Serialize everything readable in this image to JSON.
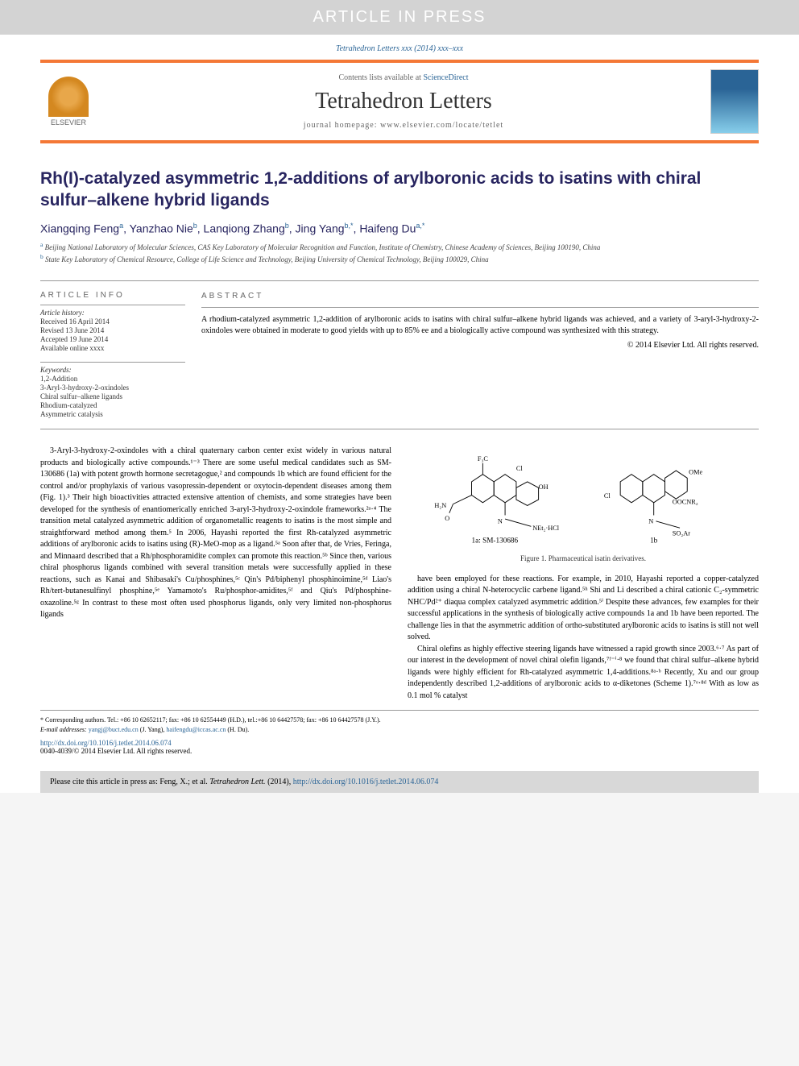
{
  "banner": "ARTICLE IN PRESS",
  "journal_ref": "Tetrahedron Letters xxx (2014) xxx–xxx",
  "header": {
    "contents_prefix": "Contents lists available at ",
    "contents_link": "ScienceDirect",
    "journal": "Tetrahedron Letters",
    "homepage_prefix": "journal homepage: ",
    "homepage": "www.elsevier.com/locate/tetlet",
    "publisher": "ELSEVIER"
  },
  "title": "Rh(I)-catalyzed asymmetric 1,2-additions of arylboronic acids to isatins with chiral sulfur–alkene hybrid ligands",
  "authors": [
    {
      "name": "Xiangqing Feng",
      "sup": "a"
    },
    {
      "name": "Yanzhao Nie",
      "sup": "b"
    },
    {
      "name": "Lanqiong Zhang",
      "sup": "b"
    },
    {
      "name": "Jing Yang",
      "sup": "b,*"
    },
    {
      "name": "Haifeng Du",
      "sup": "a,*"
    }
  ],
  "affiliations": [
    {
      "sup": "a",
      "text": "Beijing National Laboratory of Molecular Sciences, CAS Key Laboratory of Molecular Recognition and Function, Institute of Chemistry, Chinese Academy of Sciences, Beijing 100190, China"
    },
    {
      "sup": "b",
      "text": "State Key Laboratory of Chemical Resource, College of Life Science and Technology, Beijing University of Chemical Technology, Beijing 100029, China"
    }
  ],
  "article_info": {
    "heading": "ARTICLE INFO",
    "history_label": "Article history:",
    "history": [
      "Received 16 April 2014",
      "Revised 13 June 2014",
      "Accepted 19 June 2014",
      "Available online xxxx"
    ],
    "keywords_label": "Keywords:",
    "keywords": [
      "1,2-Addition",
      "3-Aryl-3-hydroxy-2-oxindoles",
      "Chiral sulfur–alkene ligands",
      "Rhodium-catalyzed",
      "Asymmetric catalysis"
    ]
  },
  "abstract": {
    "heading": "ABSTRACT",
    "text": "A rhodium-catalyzed asymmetric 1,2-addition of arylboronic acids to isatins with chiral sulfur–alkene hybrid ligands was achieved, and a variety of 3-aryl-3-hydroxy-2-oxindoles were obtained in moderate to good yields with up to 85% ee and a biologically active compound was synthesized with this strategy.",
    "copyright": "© 2014 Elsevier Ltd. All rights reserved."
  },
  "body": {
    "col1": "3-Aryl-3-hydroxy-2-oxindoles with a chiral quaternary carbon center exist widely in various natural products and biologically active compounds.¹⁻³ There are some useful medical candidates such as SM-130686 (1a) with potent growth hormone secretagogue,² and compounds 1b which are found efficient for the control and/or prophylaxis of various vasopressin-dependent or oxytocin-dependent diseases among them (Fig. 1).³ Their high bioactivities attracted extensive attention of chemists, and some strategies have been developed for the synthesis of enantiomerically enriched 3-aryl-3-hydroxy-2-oxindole frameworks.²ᵃ·⁴ The transition metal catalyzed asymmetric addition of organometallic reagents to isatins is the most simple and straightforward method among them.⁵ In 2006, Hayashi reported the first Rh-catalyzed asymmetric additions of arylboronic acids to isatins using (R)-MeO-mop as a ligand.⁵ᵃ Soon after that, de Vries, Feringa, and Minnaard described that a Rh/phosphoramidite complex can promote this reaction.⁵ᵇ Since then, various chiral phosphorus ligands combined with several transition metals were successfully applied in these reactions, such as Kanai and Shibasaki's Cu/phosphines,⁵ᶜ Qin's Pd/biphenyl phosphinoimine,⁵ᵈ Liao's Rh/tert-butanesulfinyl phosphine,⁵ᵉ Yamamoto's Ru/phosphor-amidites,⁵ᶠ and Qiu's Pd/phosphine-oxazoline.⁵ᵍ In contrast to these most often used phosphorus ligands, only very limited non-phosphorus ligands",
    "col2a": "have been employed for these reactions. For example, in 2010, Hayashi reported a copper-catalyzed addition using a chiral N-heterocyclic carbene ligand.⁵ʰ Shi and Li described a chiral cationic C₂-symmetric NHC/Pd²⁺ diaqua complex catalyzed asymmetric addition.⁵ⁱ Despite these advances, few examples for their successful applications in the synthesis of biologically active compounds 1a and 1b have been reported. The challenge lies in that the asymmetric addition of ortho-substituted arylboronic acids to isatins is still not well solved.",
    "col2b": "Chiral olefins as highly effective steering ligands have witnessed a rapid growth since 2003.⁶·⁷ As part of our interest in the development of novel chiral olefin ligands,⁷ᶠ⁻ⁱ·⁸ we found that chiral sulfur–alkene hybrid ligands were highly efficient for Rh-catalyzed asymmetric 1,4-additions.⁸ᵃ·ᵇ Recently, Xu and our group independently described 1,2-additions of arylboronic acids to α-diketones (Scheme 1).⁷ᵒ·⁸ᵈ With as low as 0.1 mol % catalyst"
  },
  "figure1": {
    "label_1a": "1a: SM-130686",
    "label_1b": "1b",
    "caption": "Figure 1. Pharmaceutical isatin derivatives.",
    "molecule_style": {
      "bond_color": "#000000",
      "label_color": "#000000",
      "font_size": 9
    }
  },
  "footnotes": {
    "corr": "* Corresponding authors. Tel.: +86 10 62652117; fax: +86 10 62554449 (H.D.), tel.:+86 10 64427578; fax: +86 10 64427578 (J.Y.).",
    "email_label": "E-mail addresses: ",
    "email1": "yangj@buct.edu.cn",
    "email1_who": " (J. Yang), ",
    "email2": "haifengdu@iccas.ac.cn",
    "email2_who": " (H. Du)."
  },
  "doi": {
    "url": "http://dx.doi.org/10.1016/j.tetlet.2014.06.074",
    "issn": "0040-4039/© 2014 Elsevier Ltd. All rights reserved."
  },
  "citebox": {
    "prefix": "Please cite this article in press as: Feng, X.; et al. ",
    "journal": "Tetrahedron Lett.",
    "year": " (2014), ",
    "link": "http://dx.doi.org/10.1016/j.tetlet.2014.06.074"
  },
  "colors": {
    "accent": "#f47836",
    "link": "#2a6496",
    "title": "#282560",
    "banner_bg": "#d3d3d3",
    "cite_bg": "#d8d8d8"
  }
}
